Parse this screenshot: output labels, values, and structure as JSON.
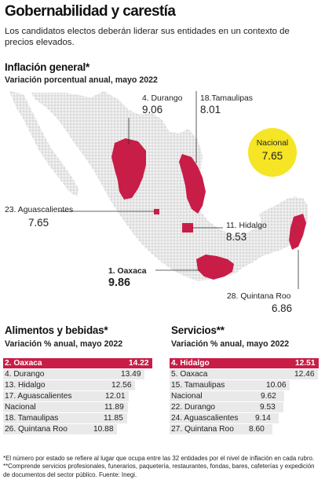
{
  "header": {
    "title": "Gobernabilidad y carestía",
    "subtitle": "Los candidatos electos deberán liderar sus entidades en un contexto de precios elevados."
  },
  "map_section": {
    "title": "Inflación general*",
    "subtitle": "Variación porcentual anual, mayo 2022",
    "national": {
      "label": "Nacional",
      "value": "7.65"
    },
    "states": [
      {
        "key": "durango",
        "label": "4. Durango",
        "value": "9.06"
      },
      {
        "key": "tamaulipas",
        "label": "18.Tamaulipas",
        "value": "8.01"
      },
      {
        "key": "aguascalientes",
        "label": "23. Aguascalientes",
        "value": "7.65"
      },
      {
        "key": "hidalgo",
        "label": "11. Hidalgo",
        "value": "8.53"
      },
      {
        "key": "oaxaca",
        "label": "1. Oaxaca",
        "value": "9.86"
      },
      {
        "key": "quintana_roo",
        "label": "28. Quintana Roo",
        "value": "6.86"
      }
    ],
    "colors": {
      "land": "#d9d9d9",
      "highlight": "#c81d47",
      "national_badge": "#f5e524"
    }
  },
  "food_table": {
    "title": "Alimentos y bebidas*",
    "subtitle": "Variación % anual, mayo 2022",
    "rows": [
      {
        "label": "2. Oaxaca",
        "value": "14.22",
        "highlight": true
      },
      {
        "label": "4. Durango",
        "value": "13.49",
        "highlight": false
      },
      {
        "label": "13. Hidalgo",
        "value": "12.56",
        "highlight": false
      },
      {
        "label": "17. Aguascalientes",
        "value": "12.01",
        "highlight": false
      },
      {
        "label": "Nacional",
        "value": "11.89",
        "highlight": false
      },
      {
        "label": "18. Tamaulipas",
        "value": "11.85",
        "highlight": false
      },
      {
        "label": "26. Quintana Roo",
        "value": "10.88",
        "highlight": false
      }
    ]
  },
  "services_table": {
    "title": "Servicios**",
    "subtitle": "Variación % anual, mayo 2022",
    "rows": [
      {
        "label": "4. Hidalgo",
        "value": "12.51",
        "highlight": true
      },
      {
        "label": "5. Oaxaca",
        "value": "12.46",
        "highlight": false
      },
      {
        "label": "15. Tamaulipas",
        "value": "10.06",
        "highlight": false
      },
      {
        "label": "Nacional",
        "value": "9.62",
        "highlight": false
      },
      {
        "label": "22. Durango",
        "value": "9.53",
        "highlight": false
      },
      {
        "label": "24. Aguascalientes",
        "value": "9.14",
        "highlight": false
      },
      {
        "label": "27. Quintana Roo",
        "value": "8.60",
        "highlight": false
      }
    ]
  },
  "footnote": "*El número por estado se refiere al lugar que ocupa entre las 32 entidades por el nivel de inflación en cada rubro. **Comprende servicios profesionales, funerarios, paquetería, restaurantes, fondas, bares, cafeterías y expedición de documentos del sector público. Fuente: Inegi."
}
